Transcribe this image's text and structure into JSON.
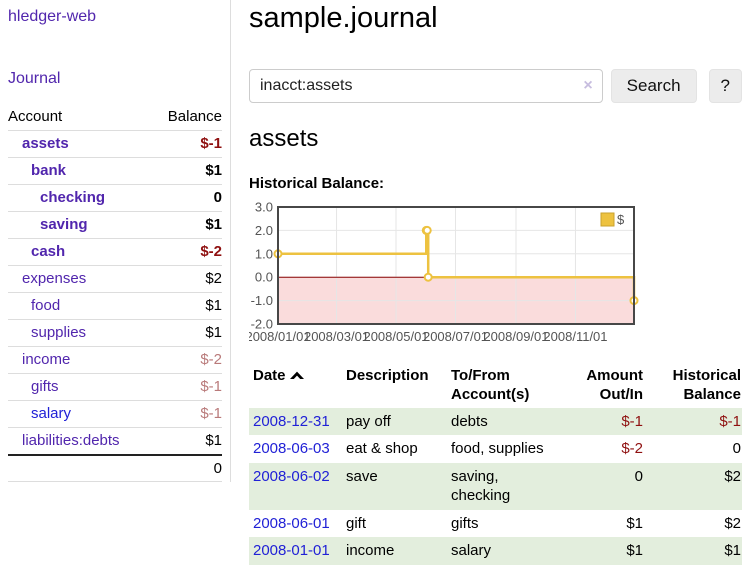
{
  "app": {
    "title": "hledger-web"
  },
  "sidebar": {
    "journal_link": "Journal",
    "accounts_header": {
      "account": "Account",
      "balance": "Balance"
    },
    "accounts": [
      {
        "name": "assets",
        "depth": 1,
        "bold": true,
        "value": "$-1"
      },
      {
        "name": "bank",
        "depth": 2,
        "bold": true,
        "value": "$1"
      },
      {
        "name": "checking",
        "depth": 3,
        "bold": true,
        "value": "0"
      },
      {
        "name": "saving",
        "depth": 3,
        "bold": true,
        "value": "$1"
      },
      {
        "name": "cash",
        "depth": 2,
        "bold": true,
        "value": "$-2"
      },
      {
        "name": "expenses",
        "depth": 1,
        "bold": false,
        "value": "$2"
      },
      {
        "name": "food",
        "depth": 2,
        "bold": false,
        "value": "$1"
      },
      {
        "name": "supplies",
        "depth": 2,
        "bold": false,
        "value": "$1"
      },
      {
        "name": "income",
        "depth": 1,
        "bold": false,
        "value": "$-2"
      },
      {
        "name": "gifts",
        "depth": 2,
        "bold": false,
        "value": "$-1"
      },
      {
        "name": "salary",
        "depth": 2,
        "bold": false,
        "value": "$-1",
        "link": "blue"
      },
      {
        "name": "liabilities:debts",
        "depth": 1,
        "bold": false,
        "value": "$1"
      }
    ],
    "total": "0"
  },
  "main": {
    "title": "sample.journal",
    "search": {
      "value": "inacct:assets",
      "clear_icon": "×",
      "button": "Search",
      "help": "?"
    },
    "account_heading": "assets",
    "chart_heading": "Historical Balance:"
  },
  "register": {
    "headers": {
      "date": "Date",
      "description": "Description",
      "accounts": "To/From Account(s)",
      "amount": "Amount Out/In",
      "balance": "Historical Balance"
    },
    "rows": [
      {
        "date": "2008-12-31",
        "description": "pay off",
        "accounts": "debts",
        "amount": "$-1",
        "balance": "$-1"
      },
      {
        "date": "2008-06-03",
        "description": "eat & shop",
        "accounts": "food, supplies",
        "amount": "$-2",
        "balance": "0"
      },
      {
        "date": "2008-06-02",
        "description": "save",
        "accounts": "saving, checking",
        "amount": "0",
        "balance": "$2"
      },
      {
        "date": "2008-06-01",
        "description": "gift",
        "accounts": "gifts",
        "amount": "$1",
        "balance": "$2"
      },
      {
        "date": "2008-01-01",
        "description": "income",
        "accounts": "salary",
        "amount": "$1",
        "balance": "$1"
      }
    ]
  },
  "chart_data": {
    "type": "line",
    "step": true,
    "title": "Historical Balance:",
    "series": [
      {
        "name": "$",
        "color": "#EDC240",
        "points": [
          [
            "2008-01-01",
            1
          ],
          [
            "2008-06-01",
            2
          ],
          [
            "2008-06-02",
            2
          ],
          [
            "2008-06-03",
            0
          ],
          [
            "2008-12-31",
            -1
          ]
        ]
      }
    ],
    "xrange": [
      "2008-01-01",
      "2008-12-31"
    ],
    "ylim": [
      -2,
      3
    ],
    "yticks": [
      "3.0",
      "2.0",
      "1.0",
      "0.0",
      "-1.0",
      "-2.0"
    ],
    "xticks": [
      {
        "date": "2008-01-01",
        "label": "2008/01/01"
      },
      {
        "date": "2008-03-01",
        "label": "2008/03/01"
      },
      {
        "date": "2008-05-01",
        "label": "2008/05/01"
      },
      {
        "date": "2008-07-01",
        "label": "2008/07/01"
      },
      {
        "date": "2008-09-01",
        "label": "2008/09/01"
      },
      {
        "date": "2008-11-01",
        "label": "2008/11/01"
      }
    ],
    "legend": {
      "position": "top-right",
      "entries": [
        "$"
      ]
    },
    "grid": true,
    "negative_region": true,
    "colors": {
      "line": "#EDC240",
      "marker_fill": "#ffffff",
      "negative_fill": "#fadcdc",
      "zero_line": "#8b0000",
      "grid": "#e6e6e6",
      "border": "#474747",
      "labels": "#545454",
      "legend_box_border": "#c9a22e"
    }
  }
}
